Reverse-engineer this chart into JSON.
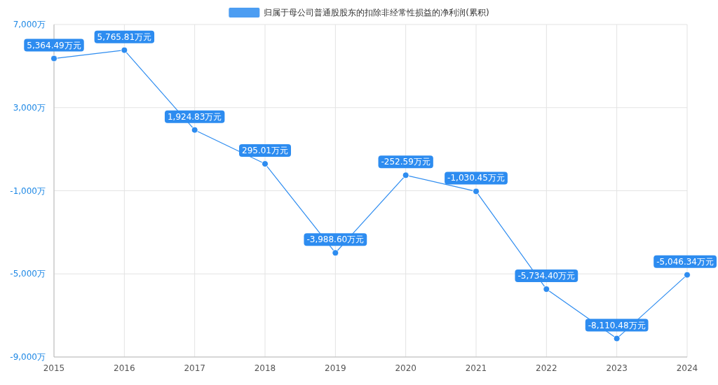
{
  "chart_data": {
    "type": "line",
    "categories": [
      "2015",
      "2016",
      "2017",
      "2018",
      "2019",
      "2020",
      "2021",
      "2022",
      "2023",
      "2024"
    ],
    "series": [
      {
        "name": "归属于母公司普通股股东的扣除非经常性损益的净利润(累积)",
        "color": "#2d8cf0",
        "values": [
          5364.49,
          5765.81,
          1924.83,
          295.01,
          -3988.6,
          -252.59,
          -1030.45,
          -5734.4,
          -8110.48,
          -5046.34
        ],
        "value_labels": [
          "5,364.49万元",
          "5,765.81万元",
          "1,924.83万元",
          "295.01万元",
          "-3,988.60万元",
          "-252.59万元",
          "-1,030.45万元",
          "-5,734.40万元",
          "-8,110.48万元",
          "-5,046.34万元"
        ]
      }
    ],
    "ylim": [
      -9000,
      7000
    ],
    "yticks": [
      {
        "value": 7000,
        "label": "7,000万"
      },
      {
        "value": 3000,
        "label": "3,000万"
      },
      {
        "value": -1000,
        "label": "-1,000万"
      },
      {
        "value": -5000,
        "label": "-5,000万"
      },
      {
        "value": -9000,
        "label": "-9,000万"
      }
    ],
    "grid": true,
    "legend": "top",
    "marker": "circle",
    "line_style": "solid"
  }
}
